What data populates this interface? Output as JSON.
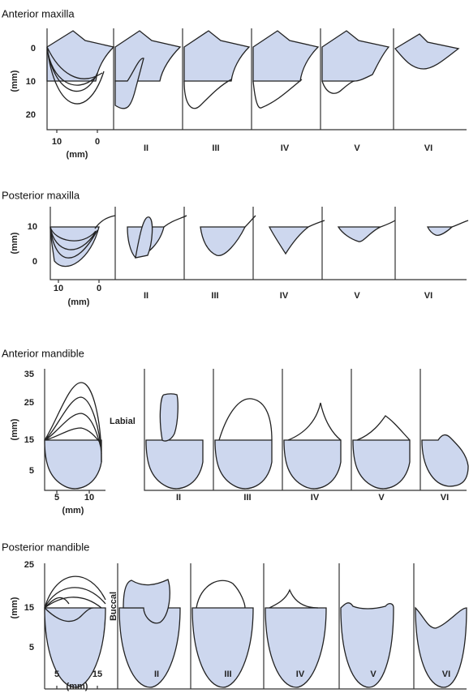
{
  "panels": [
    {
      "title": "Anterior maxilla",
      "y_label": "(mm)",
      "y_ticks": [
        "0",
        "10",
        "20"
      ],
      "x_ticks": [
        "10",
        "0"
      ],
      "x_label": "(mm)",
      "classes": [
        "II",
        "III",
        "IV",
        "V",
        "VI"
      ]
    },
    {
      "title": "Posterior maxilla",
      "y_label": "(mm)",
      "y_ticks": [
        "10",
        "0"
      ],
      "x_ticks": [
        "10",
        "0"
      ],
      "x_label": "(mm)",
      "classes": [
        "II",
        "III",
        "IV",
        "V",
        "VI"
      ]
    },
    {
      "title": "Anterior mandible",
      "y_label": "(mm)",
      "y_ticks": [
        "35",
        "25",
        "15",
        "5"
      ],
      "x_ticks": [
        "5",
        "10"
      ],
      "x_label": "(mm)",
      "side_label": "Labial",
      "classes": [
        "II",
        "III",
        "IV",
        "V",
        "VI"
      ]
    },
    {
      "title": "Posterior mandible",
      "y_label": "(mm)",
      "y_ticks": [
        "25",
        "15",
        "5"
      ],
      "x_ticks": [
        "5",
        "15"
      ],
      "x_label": "(mm)",
      "side_label": "Buccal",
      "classes": [
        "II",
        "III",
        "IV",
        "V",
        "VI"
      ]
    }
  ]
}
